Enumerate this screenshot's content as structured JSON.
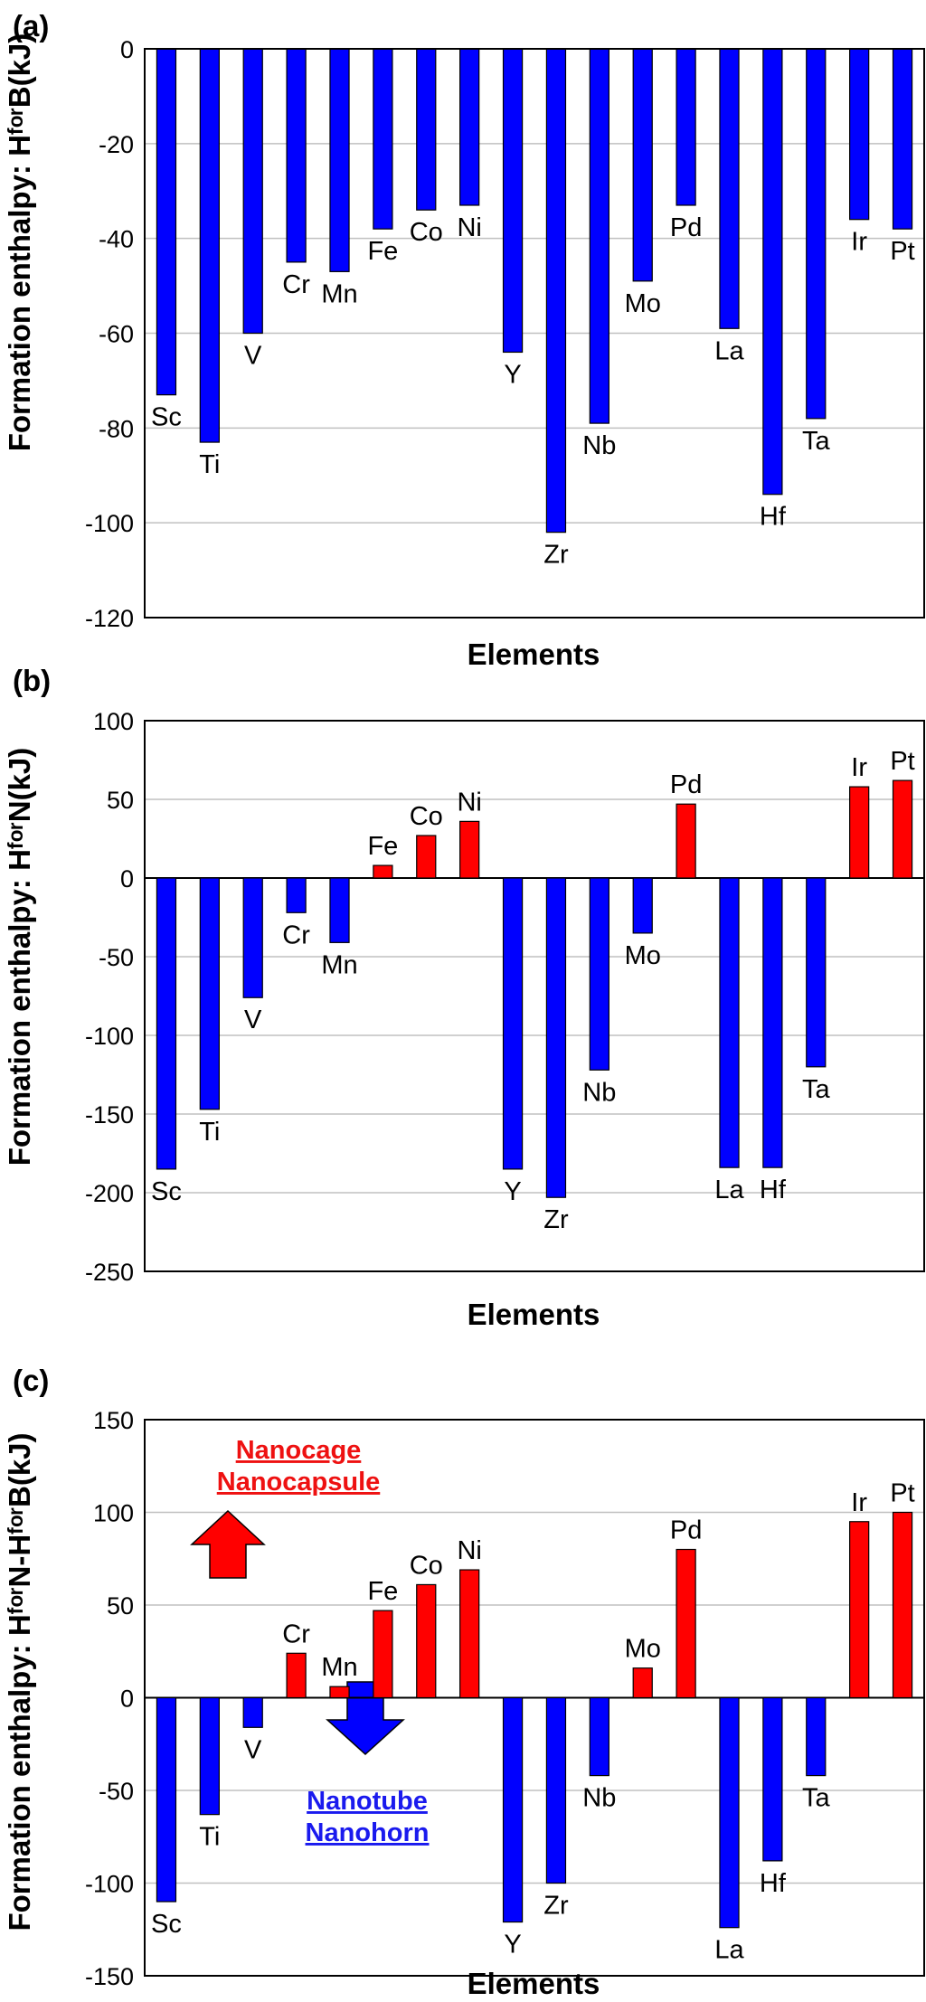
{
  "colors": {
    "negative": "#0000ff",
    "positive": "#ff0000",
    "grid": "#c0c0c0",
    "frame": "#000000"
  },
  "chart_data": [
    {
      "panel_label": "(a)",
      "type": "bar",
      "title": "",
      "xlabel": "Elements",
      "ylabel": "Formation enthalpy: HᶠᵒʳB(kJ)",
      "ylim": [
        -120,
        0
      ],
      "ytick_step": 20,
      "grid": true,
      "categories": [
        "Sc",
        "Ti",
        "V",
        "Cr",
        "Mn",
        "Fe",
        "Co",
        "Ni",
        "Y",
        "Zr",
        "Nb",
        "Mo",
        "Pd",
        "La",
        "Hf",
        "Ta",
        "Ir",
        "Pt"
      ],
      "values": [
        -73,
        -83,
        -60,
        -45,
        -47,
        -38,
        -34,
        -33,
        -64,
        -102,
        -79,
        -49,
        -33,
        -59,
        -94,
        -78,
        -36,
        -38
      ]
    },
    {
      "panel_label": "(b)",
      "type": "bar",
      "title": "",
      "xlabel": "Elements",
      "ylabel": "Formation enthalpy: HᶠᵒʳN(kJ)",
      "ylim": [
        -250,
        100
      ],
      "ytick_step": 50,
      "grid": true,
      "categories": [
        "Sc",
        "Ti",
        "V",
        "Cr",
        "Mn",
        "Fe",
        "Co",
        "Ni",
        "Y",
        "Zr",
        "Nb",
        "Mo",
        "Pd",
        "La",
        "Hf",
        "Ta",
        "Ir",
        "Pt"
      ],
      "values": [
        -185,
        -147,
        -76,
        -22,
        -41,
        8,
        27,
        36,
        -185,
        -203,
        -122,
        -35,
        47,
        -184,
        -184,
        -120,
        58,
        62
      ]
    },
    {
      "panel_label": "(c)",
      "type": "bar",
      "title": "",
      "xlabel": "Elements",
      "ylabel": "Formation enthalpy: HᶠᵒʳN-HᶠᵒʳB(kJ)",
      "ylim": [
        -150,
        150
      ],
      "ytick_step": 50,
      "grid": true,
      "categories": [
        "Sc",
        "Ti",
        "V",
        "Cr",
        "Mn",
        "Fe",
        "Co",
        "Ni",
        "Y",
        "Zr",
        "Nb",
        "Mo",
        "Pd",
        "La",
        "Hf",
        "Ta",
        "Ir",
        "Pt"
      ],
      "values": [
        -110,
        -63,
        -16,
        24,
        6,
        47,
        61,
        69,
        -121,
        -100,
        -42,
        16,
        80,
        -124,
        -88,
        -42,
        95,
        100
      ],
      "annotations": {
        "up": [
          "Nanocage",
          "Nanocapsule"
        ],
        "down": [
          "Nanotube",
          "Nanohorn"
        ]
      }
    }
  ]
}
